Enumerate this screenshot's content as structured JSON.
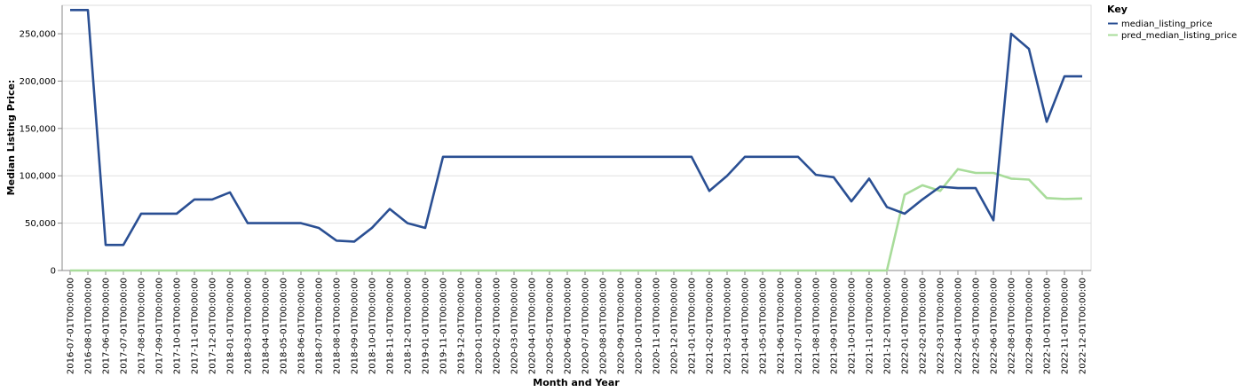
{
  "chart_data": {
    "type": "line",
    "xlabel": "Month and Year",
    "ylabel": "Median Listing Price:",
    "ylim": [
      0,
      280000
    ],
    "y_ticks": [
      0,
      50000,
      100000,
      150000,
      200000,
      250000
    ],
    "y_tick_labels": [
      "0",
      "50,000",
      "100,000",
      "150,000",
      "200,000",
      "250,000"
    ],
    "grid": true,
    "legend": {
      "title": "Key",
      "placement": "top-right"
    },
    "x": [
      "2016-07-01T00:00:00",
      "2016-08-01T00:00:00",
      "2017-06-01T00:00:00",
      "2017-07-01T00:00:00",
      "2017-08-01T00:00:00",
      "2017-09-01T00:00:00",
      "2017-10-01T00:00:00",
      "2017-11-01T00:00:00",
      "2017-12-01T00:00:00",
      "2018-01-01T00:00:00",
      "2018-03-01T00:00:00",
      "2018-04-01T00:00:00",
      "2018-05-01T00:00:00",
      "2018-06-01T00:00:00",
      "2018-07-01T00:00:00",
      "2018-08-01T00:00:00",
      "2018-09-01T00:00:00",
      "2018-10-01T00:00:00",
      "2018-11-01T00:00:00",
      "2018-12-01T00:00:00",
      "2019-01-01T00:00:00",
      "2019-11-01T00:00:00",
      "2019-12-01T00:00:00",
      "2020-01-01T00:00:00",
      "2020-02-01T00:00:00",
      "2020-03-01T00:00:00",
      "2020-04-01T00:00:00",
      "2020-05-01T00:00:00",
      "2020-06-01T00:00:00",
      "2020-07-01T00:00:00",
      "2020-08-01T00:00:00",
      "2020-09-01T00:00:00",
      "2020-10-01T00:00:00",
      "2020-11-01T00:00:00",
      "2020-12-01T00:00:00",
      "2021-01-01T00:00:00",
      "2021-02-01T00:00:00",
      "2021-03-01T00:00:00",
      "2021-04-01T00:00:00",
      "2021-05-01T00:00:00",
      "2021-06-01T00:00:00",
      "2021-07-01T00:00:00",
      "2021-08-01T00:00:00",
      "2021-09-01T00:00:00",
      "2021-10-01T00:00:00",
      "2021-11-01T00:00:00",
      "2021-12-01T00:00:00",
      "2022-01-01T00:00:00",
      "2022-02-01T00:00:00",
      "2022-03-01T00:00:00",
      "2022-04-01T00:00:00",
      "2022-05-01T00:00:00",
      "2022-06-01T00:00:00",
      "2022-08-01T00:00:00",
      "2022-09-01T00:00:00",
      "2022-10-01T00:00:00",
      "2022-11-01T00:00:00",
      "2022-12-01T00:00:00"
    ],
    "series": [
      {
        "name": "median_listing_price",
        "color": "#2a4f93",
        "values": [
          275000,
          275000,
          27000,
          27000,
          60000,
          60000,
          60000,
          75000,
          75000,
          82500,
          50000,
          50000,
          50000,
          50000,
          45000,
          31500,
          30500,
          45000,
          65000,
          50000,
          45000,
          120000,
          120000,
          120000,
          120000,
          120000,
          120000,
          120000,
          120000,
          120000,
          120000,
          120000,
          120000,
          120000,
          120000,
          120000,
          84000,
          100000,
          120000,
          120000,
          120000,
          120000,
          101000,
          98500,
          73000,
          97000,
          67000,
          60000,
          75000,
          88500,
          87000,
          87000,
          53000,
          250000,
          234000,
          157000,
          205000,
          205000
        ]
      },
      {
        "name": "pred_median_listing_price",
        "color": "#a8dc9a",
        "values": [
          0,
          0,
          0,
          0,
          0,
          0,
          0,
          0,
          0,
          0,
          0,
          0,
          0,
          0,
          0,
          0,
          0,
          0,
          0,
          0,
          0,
          0,
          0,
          0,
          0,
          0,
          0,
          0,
          0,
          0,
          0,
          0,
          0,
          0,
          0,
          0,
          0,
          0,
          0,
          0,
          0,
          0,
          0,
          0,
          0,
          0,
          0,
          80000,
          90000,
          84000,
          107000,
          103000,
          103000,
          97000,
          96000,
          76500,
          75500,
          76000
        ]
      }
    ]
  }
}
